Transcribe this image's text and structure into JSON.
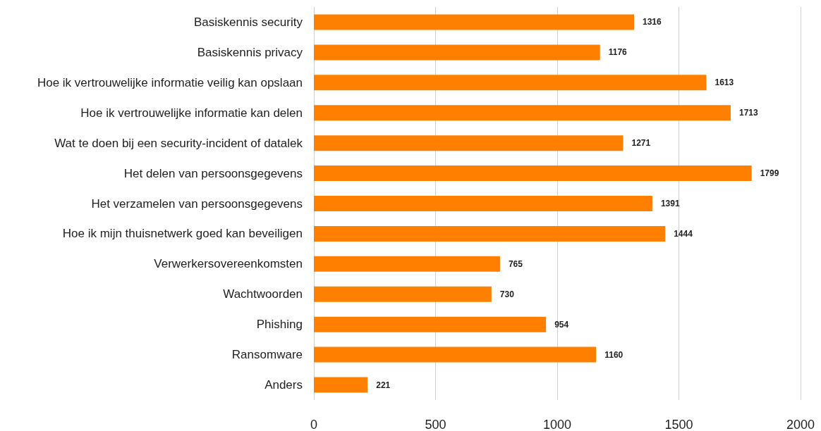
{
  "chart_data": {
    "type": "bar",
    "orientation": "horizontal",
    "categories": [
      "Basiskennis security",
      "Basiskennis privacy",
      "Hoe ik vertrouwelijke informatie veilig kan opslaan",
      "Hoe ik vertrouwelijke informatie kan delen",
      "Wat te doen bij een security-incident of datalek",
      "Het delen van persoonsgegevens",
      "Het verzamelen van persoonsgegevens",
      "Hoe ik mijn thuisnetwerk goed kan beveiligen",
      "Verwerkersovereenkomsten",
      "Wachtwoorden",
      "Phishing",
      "Ransomware",
      "Anders"
    ],
    "values": [
      1316,
      1176,
      1613,
      1713,
      1271,
      1799,
      1391,
      1444,
      765,
      730,
      954,
      1160,
      221
    ],
    "color": "#ff7f00",
    "xlim": [
      0,
      2000
    ],
    "xticks": [
      0,
      500,
      1000,
      1500,
      2000
    ],
    "grid": "x",
    "data_labels": true
  }
}
